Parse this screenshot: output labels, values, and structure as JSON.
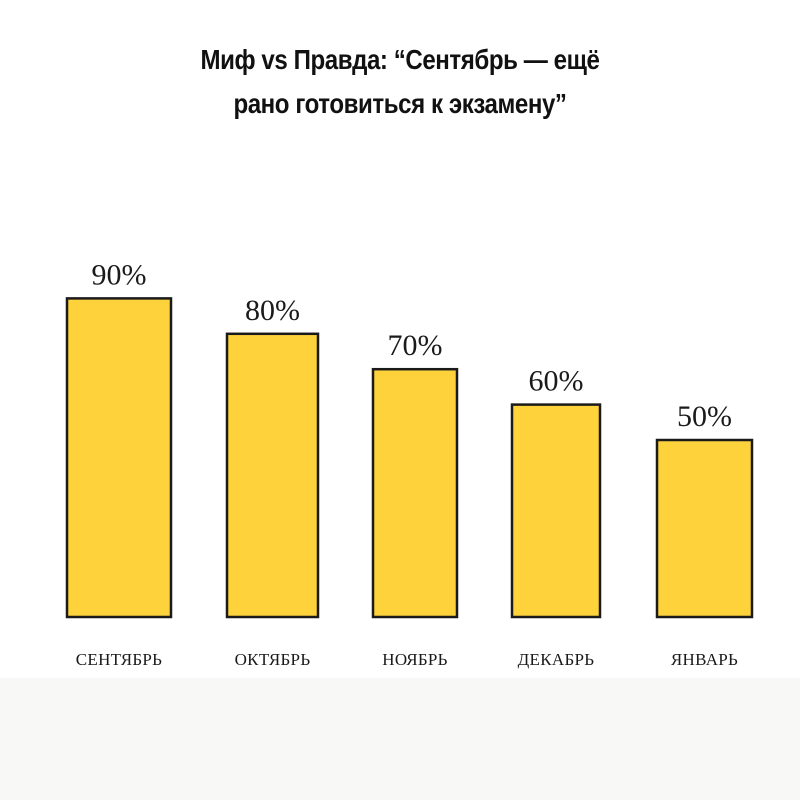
{
  "title": {
    "line1": "Миф vs Правда: “Сентябрь — ещё",
    "line2": "рано готовиться к экзамену”"
  },
  "chart_data": {
    "type": "bar",
    "title": "Миф vs Правда: “Сентябрь — ещё рано готовиться к экзамену”",
    "categories": [
      "СЕНТЯБРЬ",
      "ОКТЯБРЬ",
      "НОЯБРЬ",
      "ДЕКАБРЬ",
      "ЯНВАРЬ"
    ],
    "values": [
      90,
      80,
      70,
      60,
      50
    ],
    "value_labels": [
      "90%",
      "80%",
      "70%",
      "60%",
      "50%"
    ],
    "bar_color": "#fdd23b",
    "outline_color": "#1a1a1a",
    "xlabel": "",
    "ylabel": "",
    "ylim": [
      0,
      100
    ],
    "grid": false,
    "legend": "none"
  }
}
